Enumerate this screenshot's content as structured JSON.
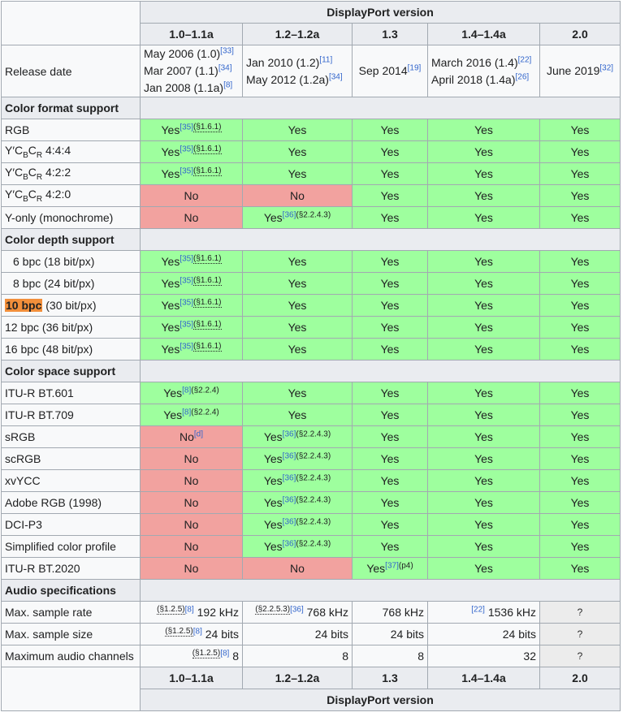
{
  "header": {
    "group_label": "DisplayPort version",
    "versions": [
      "1.0–1.1a",
      "1.2–1.2a",
      "1.3",
      "1.4–1.4a",
      "2.0"
    ]
  },
  "release": {
    "label": "Release date",
    "v10": [
      "May 2006 (1.0)",
      "[33]",
      "Mar 2007 (1.1)",
      "[34]",
      "Jan 2008 (1.1a)",
      "[8]"
    ],
    "v12": [
      "Jan 2010 (1.2)",
      "[11]",
      "May 2012 (1.2a)",
      "[34]"
    ],
    "v13": [
      "Sep 2014",
      "[19]"
    ],
    "v14": [
      "March 2016 (1.4)",
      "[22]",
      "April 2018 (1.4a)",
      "[26]"
    ],
    "v20": [
      "June 2019",
      "[32]"
    ]
  },
  "refs": {
    "r35": "[35]",
    "s161": "(§1.6.1)",
    "r36": "[36]",
    "s2243": "(§2.2.4.3)",
    "r8": "[8]",
    "s224": "(§2.2.4)",
    "rd": "[d]",
    "r37": "[37]",
    "p4": "(p4)",
    "s125": "(§1.2.5)",
    "s2253": "(§2.2.5.3)",
    "r22": "[22]"
  },
  "values": {
    "yes": "Yes",
    "no": "No",
    "unknown": "?"
  },
  "sections": {
    "color_format": "Color format support",
    "color_depth": "Color depth support",
    "color_space": "Color space support",
    "audio": "Audio specifications"
  },
  "color_format": {
    "rgb": "RGB",
    "ycbcr444": [
      "Y′C",
      "B",
      "C",
      "R",
      " 4:4:4"
    ],
    "ycbcr422": [
      "Y′C",
      "B",
      "C",
      "R",
      " 4:2:2"
    ],
    "ycbcr420": [
      "Y′C",
      "B",
      "C",
      "R",
      " 4:2:0"
    ],
    "yonly": "Y-only (monochrome)"
  },
  "color_depth": {
    "b6": "6 bpc (18 bit/px)",
    "b8": "8 bpc (24 bit/px)",
    "b10_hl": "10 bpc",
    "b10_rest": " (30 bit/px)",
    "b12": "12 bpc (36 bit/px)",
    "b16": "16 bpc (48 bit/px)"
  },
  "color_space": {
    "bt601": "ITU-R BT.601",
    "bt709": "ITU-R BT.709",
    "srgb": "sRGB",
    "scrgb": "scRGB",
    "xvycc": "xvYCC",
    "adobe": "Adobe RGB (1998)",
    "dcip3": "DCI-P3",
    "simplified": "Simplified color profile",
    "bt2020": "ITU-R BT.2020"
  },
  "audio": {
    "rate_label": "Max. sample rate",
    "size_label": "Max. sample size",
    "chan_label": "Maximum audio channels",
    "rate": [
      "192 kHz",
      "768 kHz",
      "768 kHz",
      "1536 kHz"
    ],
    "size": [
      "24 bits",
      "24 bits",
      "24 bits",
      "24 bits"
    ],
    "chan": [
      "8",
      "8",
      "8",
      "32"
    ]
  }
}
